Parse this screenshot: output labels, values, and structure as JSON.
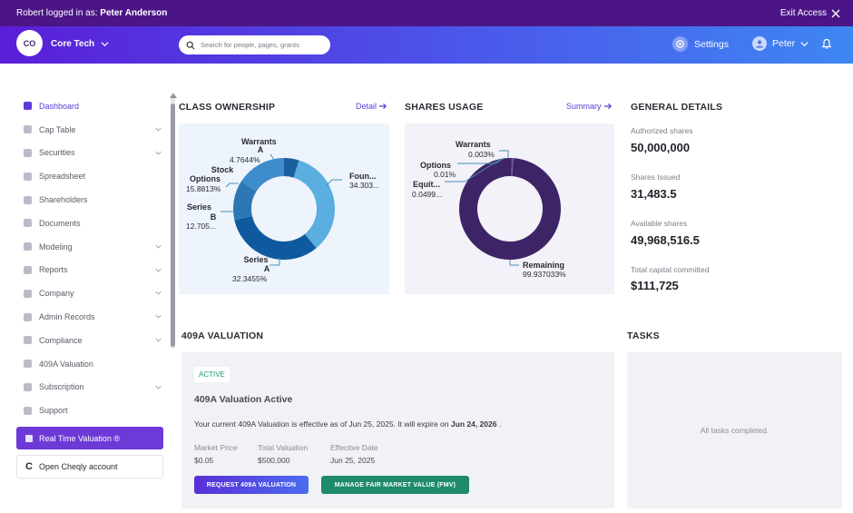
{
  "topbar": {
    "who_prefix": "Robert logged in as:",
    "who_name": "Peter Anderson",
    "exit_label": "Exit Access"
  },
  "header": {
    "logo_initials": "CO",
    "company_name": "Core Tech",
    "search_placeholder": "Search for people, pages, grants",
    "settings_label": "Settings",
    "user_name": "Peter"
  },
  "sidebar": {
    "items": [
      {
        "label": "Dashboard",
        "active": true,
        "expandable": false
      },
      {
        "label": "Cap Table",
        "expandable": true
      },
      {
        "label": "Securities",
        "expandable": true
      },
      {
        "label": "Spreadsheet",
        "expandable": false
      },
      {
        "label": "Shareholders",
        "expandable": false
      },
      {
        "label": "Documents",
        "expandable": false
      },
      {
        "label": "Modeling",
        "expandable": true
      },
      {
        "label": "Reports",
        "expandable": true
      },
      {
        "label": "Company",
        "expandable": true
      },
      {
        "label": "Admin Records",
        "expandable": true
      },
      {
        "label": "Compliance",
        "expandable": true
      },
      {
        "label": "409A Valuation",
        "expandable": false
      },
      {
        "label": "Subscription",
        "expandable": true
      },
      {
        "label": "Support",
        "expandable": false
      }
    ],
    "rtv_button": "Real Time Valuation ®",
    "cheqly_button": "Open Cheqly account"
  },
  "class_ownership": {
    "title": "CLASS OWNERSHIP",
    "link": "Detail",
    "slices": [
      {
        "name_lines": [
          "Warrants",
          "A"
        ],
        "value": 4.7644,
        "label": "4.7644%",
        "color": "#1b5f9c"
      },
      {
        "name_lines": [
          "Foun..."
        ],
        "value": 34.3033,
        "label": "34.303...",
        "color": "#5aaee0"
      },
      {
        "name_lines": [
          "Series",
          "A"
        ],
        "value": 32.3455,
        "label": "32.3455%",
        "color": "#0f5a9e"
      },
      {
        "name_lines": [
          "Series",
          "B"
        ],
        "value": 12.7055,
        "label": "12.705...",
        "color": "#2d78b4"
      },
      {
        "name_lines": [
          "Stock",
          "Options"
        ],
        "value": 15.8813,
        "label": "15.8813%",
        "color": "#3d8ccc"
      }
    ]
  },
  "shares_usage": {
    "title": "SHARES USAGE",
    "link": "Summary",
    "slices": [
      {
        "name": "Remaining",
        "value": 99.937033,
        "label": "99.937033%",
        "color": "#3d2466"
      },
      {
        "name": "Equit...",
        "value": 0.0499,
        "label": "0.0499...",
        "color": "#5b3b8c"
      },
      {
        "name": "Options",
        "value": 0.01,
        "label": "0.01%",
        "color": "#7a5aa8"
      },
      {
        "name": "Warrants",
        "value": 0.003,
        "label": "0.003%",
        "color": "#9a7cc4"
      }
    ]
  },
  "general": {
    "title": "GENERAL DETAILS",
    "items": [
      {
        "label": "Authorized shares",
        "value": "50,000,000"
      },
      {
        "label": "Shares Issued",
        "value": "31,483.5"
      },
      {
        "label": "Available shares",
        "value": "49,968,516.5"
      },
      {
        "label": "Total capital committed",
        "value": "$111,725"
      }
    ]
  },
  "valuation": {
    "title": "409A VALUATION",
    "badge": "ACTIVE",
    "card_title": "409A Valuation Active",
    "text_prefix": "Your current 409A Valuation is effective as of Jun 25, 2025. It will expire on",
    "expire_date": "Jun 24, 2026",
    "text_suffix": ".",
    "market_price_label": "Market Price",
    "market_price": "$0.05",
    "total_valuation_label": "Total Valuation",
    "total_valuation": "$500,000",
    "effective_date_label": "Effective Date",
    "effective_date": "Jun 25, 2025",
    "request_button": "REQUEST 409A VALUATION",
    "fmv_button": "MANAGE FAIR MARKET VALUE (FMV)"
  },
  "tasks": {
    "title": "TASKS",
    "empty": "All tasks completed."
  }
}
